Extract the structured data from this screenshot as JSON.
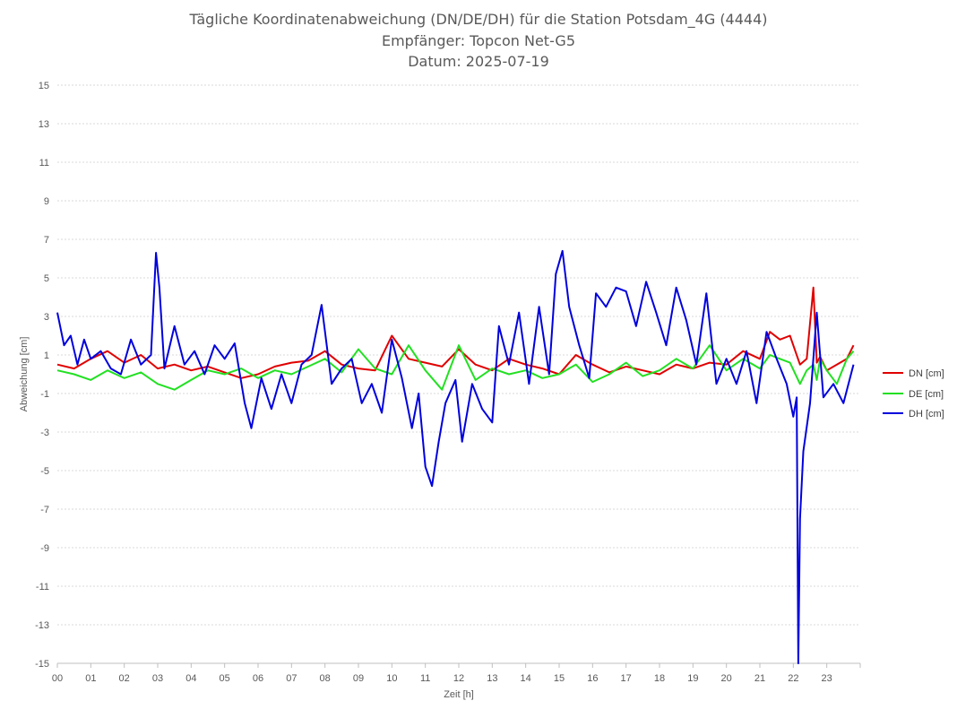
{
  "chart_data": {
    "type": "line",
    "title": [
      "Tägliche Koordinatenabweichung (DN/DE/DH) für die Station Potsdam_4G (4444)",
      "Empfänger: Topcon Net-G5",
      "Datum: 2025-07-19"
    ],
    "xlabel": "Zeit [h]",
    "ylabel": "Abweichung [cm]",
    "xlim": [
      0,
      24
    ],
    "ylim": [
      -15,
      15
    ],
    "x_ticks": [
      "00",
      "01",
      "02",
      "03",
      "04",
      "05",
      "06",
      "07",
      "08",
      "09",
      "10",
      "11",
      "12",
      "13",
      "14",
      "15",
      "16",
      "17",
      "18",
      "19",
      "20",
      "21",
      "22",
      "23"
    ],
    "y_ticks": [
      15,
      13,
      11,
      9,
      7,
      5,
      3,
      1,
      -1,
      -3,
      -5,
      -7,
      -9,
      -11,
      -13,
      -15
    ],
    "grid": true,
    "legend_position": "right",
    "colors": {
      "DN": "#e00000",
      "DE": "#22e022",
      "DH": "#0000dd",
      "grid": "#d9d9d9",
      "axis": "#bfbfbf"
    },
    "series": [
      {
        "name": "DN [cm]",
        "color": "#e00000",
        "x": [
          0.0,
          0.5,
          1.0,
          1.5,
          2.0,
          2.5,
          3.0,
          3.5,
          4.0,
          4.5,
          5.0,
          5.5,
          6.0,
          6.5,
          7.0,
          7.5,
          8.0,
          8.5,
          9.0,
          9.5,
          10.0,
          10.5,
          11.0,
          11.5,
          12.0,
          12.5,
          13.0,
          13.5,
          14.0,
          14.5,
          15.0,
          15.5,
          16.0,
          16.5,
          17.0,
          17.5,
          18.0,
          18.5,
          19.0,
          19.5,
          20.0,
          20.5,
          21.0,
          21.3,
          21.6,
          21.9,
          22.2,
          22.4,
          22.6,
          22.7,
          22.8,
          23.0,
          23.3,
          23.6,
          23.8
        ],
        "y": [
          0.5,
          0.3,
          0.8,
          1.2,
          0.6,
          1.0,
          0.3,
          0.5,
          0.2,
          0.4,
          0.1,
          -0.2,
          0.0,
          0.4,
          0.6,
          0.7,
          1.2,
          0.5,
          0.3,
          0.2,
          2.0,
          0.8,
          0.6,
          0.4,
          1.3,
          0.5,
          0.2,
          0.8,
          0.5,
          0.3,
          0.0,
          1.0,
          0.5,
          0.1,
          0.4,
          0.2,
          0.0,
          0.5,
          0.3,
          0.6,
          0.5,
          1.2,
          0.8,
          2.2,
          1.8,
          2.0,
          0.5,
          0.8,
          4.5,
          0.6,
          0.9,
          0.2,
          0.5,
          0.8,
          1.5
        ]
      },
      {
        "name": "DE [cm]",
        "color": "#22e022",
        "x": [
          0.0,
          0.5,
          1.0,
          1.5,
          2.0,
          2.5,
          3.0,
          3.5,
          4.0,
          4.5,
          5.0,
          5.5,
          6.0,
          6.5,
          7.0,
          7.5,
          8.0,
          8.5,
          9.0,
          9.5,
          10.0,
          10.5,
          11.0,
          11.5,
          12.0,
          12.5,
          13.0,
          13.5,
          14.0,
          14.5,
          15.0,
          15.5,
          16.0,
          16.5,
          17.0,
          17.5,
          18.0,
          18.5,
          19.0,
          19.5,
          20.0,
          20.5,
          21.0,
          21.3,
          21.6,
          21.9,
          22.2,
          22.4,
          22.6,
          22.7,
          22.8,
          23.0,
          23.3,
          23.6,
          23.8
        ],
        "y": [
          0.2,
          0.0,
          -0.3,
          0.2,
          -0.2,
          0.1,
          -0.5,
          -0.8,
          -0.3,
          0.2,
          0.0,
          0.3,
          -0.2,
          0.2,
          0.0,
          0.4,
          0.8,
          0.1,
          1.3,
          0.3,
          0.0,
          1.5,
          0.2,
          -0.8,
          1.5,
          -0.3,
          0.3,
          0.0,
          0.2,
          -0.2,
          0.0,
          0.5,
          -0.4,
          0.0,
          0.6,
          -0.1,
          0.2,
          0.8,
          0.3,
          1.5,
          0.2,
          0.8,
          0.3,
          1.0,
          0.8,
          0.6,
          -0.5,
          0.2,
          0.5,
          -0.3,
          0.8,
          0.2,
          -0.5,
          0.8,
          1.2
        ]
      },
      {
        "name": "DH [cm]",
        "color": "#0000dd",
        "x": [
          0.0,
          0.2,
          0.4,
          0.6,
          0.8,
          1.0,
          1.3,
          1.6,
          1.9,
          2.2,
          2.5,
          2.8,
          2.95,
          3.05,
          3.2,
          3.5,
          3.8,
          4.1,
          4.4,
          4.7,
          5.0,
          5.3,
          5.6,
          5.8,
          6.1,
          6.4,
          6.7,
          7.0,
          7.3,
          7.6,
          7.9,
          8.2,
          8.5,
          8.8,
          9.1,
          9.4,
          9.7,
          10.0,
          10.3,
          10.6,
          10.8,
          11.0,
          11.2,
          11.4,
          11.6,
          11.9,
          12.1,
          12.4,
          12.7,
          13.0,
          13.2,
          13.5,
          13.8,
          14.1,
          14.4,
          14.7,
          14.9,
          15.1,
          15.3,
          15.6,
          15.9,
          16.1,
          16.4,
          16.7,
          17.0,
          17.3,
          17.6,
          17.9,
          18.2,
          18.5,
          18.8,
          19.1,
          19.4,
          19.7,
          20.0,
          20.3,
          20.6,
          20.9,
          21.2,
          21.5,
          21.8,
          22.0,
          22.1,
          22.15,
          22.2,
          22.3,
          22.5,
          22.7,
          22.9,
          23.2,
          23.5,
          23.8
        ],
        "y": [
          3.2,
          1.5,
          2.0,
          0.5,
          1.8,
          0.8,
          1.2,
          0.3,
          0.0,
          1.8,
          0.5,
          1.0,
          6.3,
          4.5,
          0.3,
          2.5,
          0.5,
          1.2,
          0.0,
          1.5,
          0.8,
          1.6,
          -1.5,
          -2.8,
          -0.2,
          -1.8,
          0.0,
          -1.5,
          0.5,
          1.0,
          3.6,
          -0.5,
          0.3,
          0.8,
          -1.5,
          -0.5,
          -2.0,
          1.8,
          -0.2,
          -2.8,
          -1.0,
          -4.8,
          -5.8,
          -3.5,
          -1.5,
          -0.3,
          -3.5,
          -0.5,
          -1.8,
          -2.5,
          2.5,
          0.5,
          3.2,
          -0.5,
          3.5,
          0.0,
          5.2,
          6.4,
          3.5,
          1.5,
          -0.2,
          4.2,
          3.5,
          4.5,
          4.3,
          2.5,
          4.8,
          3.2,
          1.5,
          4.5,
          2.8,
          0.5,
          4.2,
          -0.5,
          0.8,
          -0.5,
          1.2,
          -1.5,
          2.2,
          0.8,
          -0.5,
          -2.2,
          -1.2,
          -15.0,
          -7.5,
          -4.0,
          -1.5,
          3.2,
          -1.2,
          -0.5,
          -1.5,
          0.5
        ]
      }
    ]
  }
}
